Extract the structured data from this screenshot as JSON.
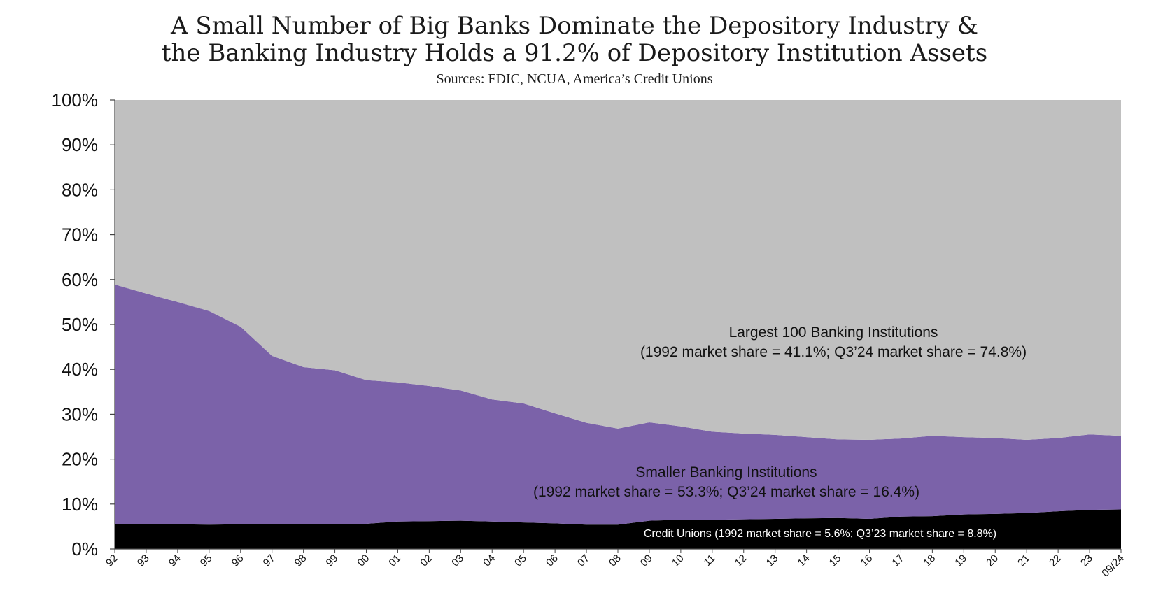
{
  "title_lines": [
    "A Small Number of Big Banks Dominate the Depository Industry &",
    "the Banking Industry Holds a 91.2% of Depository Institution Assets"
  ],
  "subtitle": "Sources: FDIC, NCUA, America’s Credit Unions",
  "chart_data": {
    "type": "area",
    "stacked": true,
    "categories": [
      "92",
      "93",
      "94",
      "95",
      "96",
      "97",
      "98",
      "99",
      "00",
      "01",
      "02",
      "03",
      "04",
      "05",
      "06",
      "07",
      "08",
      "09",
      "10",
      "11",
      "12",
      "13",
      "14",
      "15",
      "16",
      "17",
      "18",
      "19",
      "20",
      "21",
      "22",
      "23",
      "09/24"
    ],
    "y_tick_labels": [
      "0%",
      "10%",
      "20%",
      "30%",
      "40%",
      "50%",
      "60%",
      "70%",
      "80%",
      "90%",
      "100%"
    ],
    "ylim": [
      0,
      100
    ],
    "y_unit": "%",
    "grid": false,
    "colors": {
      "credit_unions": "#000000",
      "smaller_banks": "#7b62a9",
      "largest_100": "#c0c0c0"
    },
    "series": [
      {
        "name": "Credit Unions",
        "values": [
          5.6,
          5.6,
          5.5,
          5.4,
          5.5,
          5.5,
          5.6,
          5.6,
          5.6,
          6.1,
          6.2,
          6.3,
          6.1,
          5.9,
          5.7,
          5.4,
          5.4,
          6.3,
          6.5,
          6.5,
          6.6,
          6.7,
          6.8,
          6.9,
          6.7,
          7.2,
          7.3,
          7.7,
          7.8,
          8.0,
          8.4,
          8.7,
          8.8
        ]
      },
      {
        "name": "Smaller Banking Institutions",
        "values": [
          53.3,
          51.3,
          49.5,
          47.6,
          44.0,
          37.5,
          34.9,
          34.2,
          32.0,
          31.0,
          30.1,
          29.0,
          27.2,
          26.5,
          24.5,
          22.7,
          21.4,
          21.9,
          20.8,
          19.6,
          19.1,
          18.7,
          18.1,
          17.5,
          17.6,
          17.4,
          17.9,
          17.2,
          16.9,
          16.3,
          16.3,
          16.8,
          16.4
        ]
      },
      {
        "name": "Largest 100 Banking Institutions",
        "values": [
          41.1,
          43.1,
          45.0,
          47.0,
          50.5,
          57.0,
          59.5,
          60.2,
          62.4,
          62.9,
          63.7,
          64.7,
          66.7,
          67.6,
          69.8,
          71.9,
          73.2,
          71.8,
          72.7,
          73.9,
          74.3,
          74.6,
          75.1,
          75.6,
          75.7,
          75.4,
          74.8,
          75.1,
          75.3,
          75.7,
          75.3,
          74.5,
          74.8
        ]
      }
    ],
    "annotations": {
      "largest_100": [
        "Largest 100 Banking Institutions",
        "(1992 market share = 41.1%; Q3’24 market share = 74.8%)"
      ],
      "smaller": [
        "Smaller Banking Institutions",
        "(1992 market share = 53.3%; Q3’24 market share = 16.4%)"
      ],
      "credit_unions": "Credit Unions (1992 market share = 5.6%; Q3’23 market share = 8.8%)"
    }
  }
}
